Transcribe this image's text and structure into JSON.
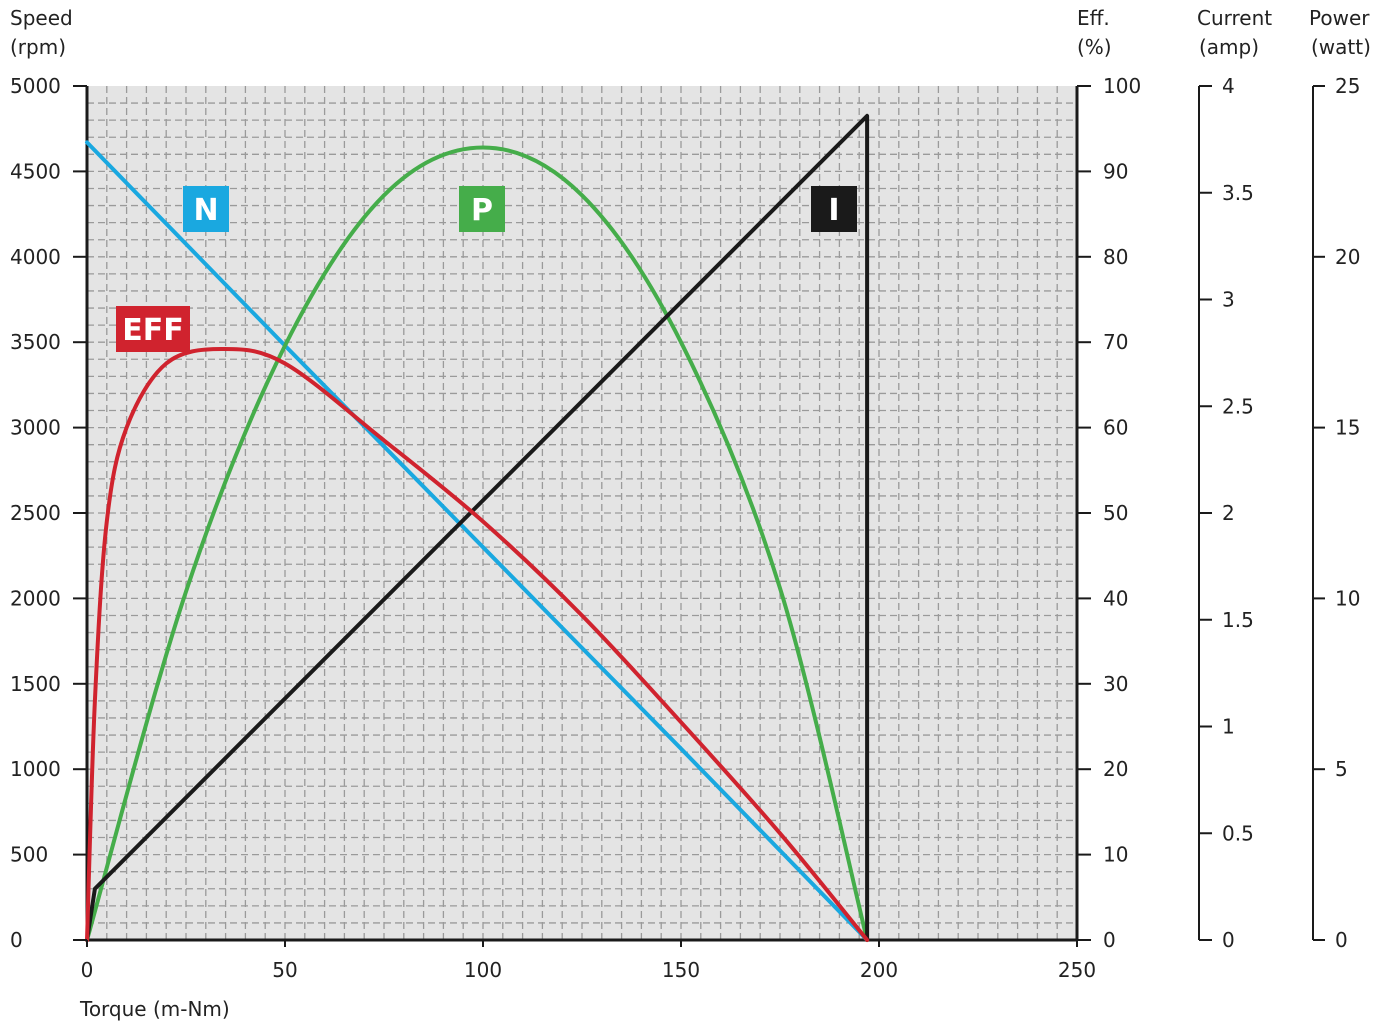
{
  "chart_data": {
    "type": "line",
    "xlabel": "Torque (m-Nm)",
    "x_ticks": [
      0,
      50,
      100,
      150,
      200,
      250
    ],
    "xlim": [
      0,
      250
    ],
    "grid": true,
    "axes": {
      "speed": {
        "label_line1": "Speed",
        "label_line2": "(rpm)",
        "range": [
          0,
          5000
        ],
        "ticks": [
          0,
          500,
          1000,
          1500,
          2000,
          2500,
          3000,
          3500,
          4000,
          4500,
          5000
        ]
      },
      "efficiency": {
        "label_line1": "Eff.",
        "label_line2": "(%)",
        "range": [
          0,
          100
        ],
        "ticks": [
          0,
          10,
          20,
          30,
          40,
          50,
          60,
          70,
          80,
          90,
          100
        ]
      },
      "current": {
        "label_line1": "Current",
        "label_line2": "(amp)",
        "range": [
          0,
          4
        ],
        "ticks": [
          0,
          0.5,
          1,
          1.5,
          2,
          2.5,
          3,
          3.5,
          4
        ]
      },
      "power": {
        "label_line1": "Power",
        "label_line2": "(watt)",
        "range": [
          0,
          25
        ],
        "ticks": [
          0,
          5,
          10,
          15,
          20,
          25
        ]
      }
    },
    "series": [
      {
        "name": "N",
        "axis": "speed",
        "color": "#1aa8e0",
        "x": [
          0,
          50,
          100,
          150,
          197
        ],
        "y": [
          4670,
          3480,
          2300,
          1120,
          0
        ]
      },
      {
        "name": "P",
        "axis": "power",
        "color": "#45ad4a",
        "x": [
          0,
          25,
          50,
          75,
          100,
          125,
          150,
          175,
          197
        ],
        "y": [
          0,
          10.2,
          17.4,
          21.8,
          23.2,
          21.8,
          17.5,
          10.3,
          0
        ]
      },
      {
        "name": "I",
        "axis": "current",
        "color": "#1a1a1a",
        "x": [
          0,
          2,
          197,
          197
        ],
        "y": [
          0,
          0.24,
          3.86,
          0
        ]
      },
      {
        "name": "EFF",
        "axis": "efficiency",
        "color": "#d0232e",
        "x": [
          0,
          2,
          5,
          10,
          20,
          34,
          50,
          75,
          100,
          125,
          150,
          175,
          197
        ],
        "y": [
          0,
          28,
          49,
          60,
          67.5,
          69.2,
          67.5,
          58.5,
          49,
          38,
          25.5,
          12.5,
          0
        ]
      }
    ],
    "labels": [
      {
        "text": "N",
        "color": "#1aa8e0"
      },
      {
        "text": "P",
        "color": "#45ad4a"
      },
      {
        "text": "I",
        "color": "#1a1a1a"
      },
      {
        "text": "EFF",
        "color": "#d0232e"
      }
    ]
  }
}
